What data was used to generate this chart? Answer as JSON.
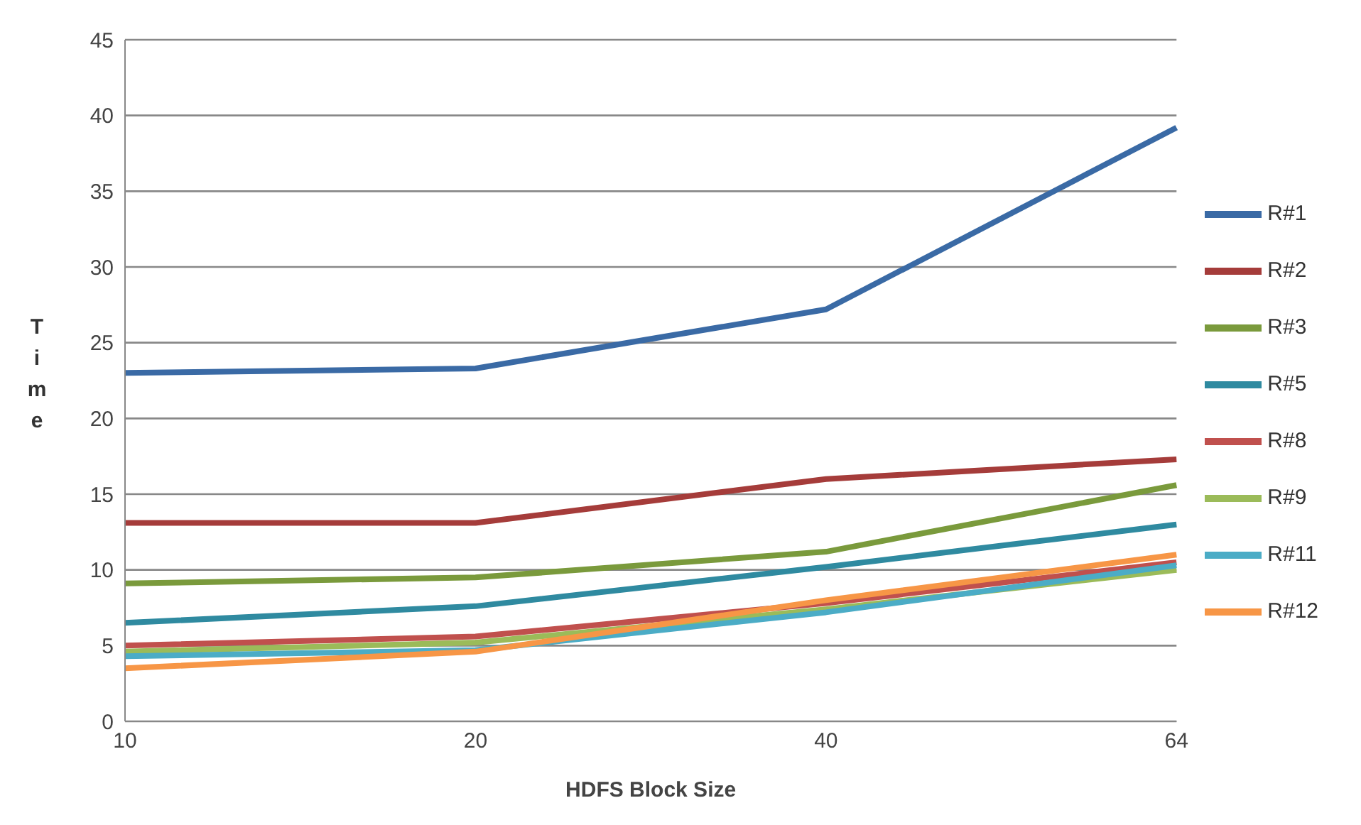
{
  "chart_data": {
    "type": "line",
    "xlabel": "HDFS Block Size",
    "ylabel": "Time",
    "categories": [
      "10",
      "20",
      "40",
      "64"
    ],
    "series": [
      {
        "name": "R#1",
        "color": "#3a6aa5",
        "values": [
          23,
          23.3,
          27.2,
          39.2
        ]
      },
      {
        "name": "R#2",
        "color": "#a53c3a",
        "values": [
          13.1,
          13.1,
          16,
          17.3
        ]
      },
      {
        "name": "R#3",
        "color": "#7a9a3c",
        "values": [
          9.1,
          9.5,
          11.2,
          15.6
        ]
      },
      {
        "name": "R#5",
        "color": "#2f8aa0",
        "values": [
          6.5,
          7.6,
          10.2,
          13
        ]
      },
      {
        "name": "R#8",
        "color": "#c0504d",
        "values": [
          5,
          5.6,
          7.8,
          10.5
        ]
      },
      {
        "name": "R#9",
        "color": "#9bbb59",
        "values": [
          4.6,
          5.2,
          7.4,
          10
        ]
      },
      {
        "name": "R#11",
        "color": "#4bacc6",
        "values": [
          4.3,
          4.7,
          7.2,
          10.3
        ]
      },
      {
        "name": "R#12",
        "color": "#f79646",
        "values": [
          3.5,
          4.6,
          8,
          11
        ]
      }
    ],
    "ylim": [
      0,
      45
    ],
    "yticks": [
      0,
      5,
      10,
      15,
      20,
      25,
      30,
      35,
      40,
      45
    ],
    "grid": "y",
    "legend": "right",
    "marker": "none",
    "line_style": "solid"
  }
}
